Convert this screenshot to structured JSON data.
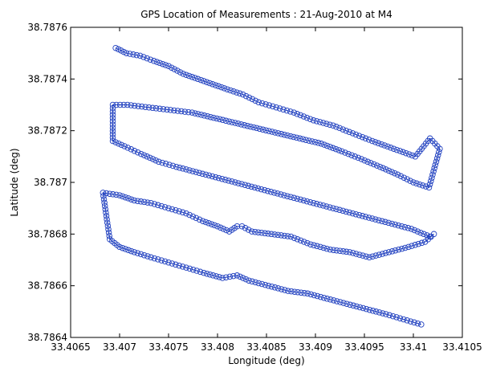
{
  "chart_data": {
    "type": "line",
    "title": "GPS Location of Measurements : 21-Aug-2010 at M4",
    "xlabel": "Longitude (deg)",
    "ylabel": "Latitude (deg)",
    "xlim": [
      33.4065,
      33.4105
    ],
    "ylim": [
      38.7864,
      38.7876
    ],
    "xticks": [
      33.4065,
      33.407,
      33.4075,
      33.408,
      33.4085,
      33.409,
      33.4095,
      33.41,
      33.4105
    ],
    "xtick_labels": [
      "33.4065",
      "33.407",
      "33.4075",
      "33.408",
      "33.4085",
      "33.409",
      "33.4095",
      "33.41",
      "33.4105"
    ],
    "yticks": [
      38.7864,
      38.7866,
      38.7868,
      38.787,
      38.7872,
      38.7874,
      38.7876
    ],
    "ytick_labels": [
      "38.7864",
      "38.7866",
      "38.7868",
      "38.787",
      "38.7872",
      "38.7874",
      "38.7876"
    ],
    "grid": false,
    "marker": "circle",
    "series_color": "#1f3fbf",
    "series": [
      {
        "x": [
          33.40696,
          33.40707,
          33.40721,
          33.40735,
          33.4075,
          33.40765,
          33.4078,
          33.40795,
          33.4081,
          33.40826,
          33.40842,
          33.4086,
          33.40878,
          33.40898,
          33.40918,
          33.40938,
          33.40958,
          33.4098,
          33.41002,
          33.41017,
          33.41027,
          33.41016,
          33.41,
          33.40984,
          33.40966,
          33.40947,
          33.40927,
          33.40906,
          33.40884,
          33.40862,
          33.4084,
          33.40818,
          33.40796,
          33.40774,
          33.40752,
          33.4073,
          33.40708,
          33.40693,
          33.40693,
          33.40705,
          33.40722,
          33.4074,
          33.40758,
          33.40778,
          33.40798,
          33.40818,
          33.40838,
          33.40858,
          33.40878,
          33.40898,
          33.40918,
          33.40938,
          33.40958,
          33.40978,
          33.40998,
          33.41017,
          33.41021,
          33.41012,
          33.40995,
          33.40975,
          33.40955,
          33.40935,
          33.40915,
          33.40895,
          33.40875,
          33.40855,
          33.40835,
          33.40825,
          33.4082,
          33.40812,
          33.408,
          33.40785,
          33.40768,
          33.4075,
          33.40732,
          33.40715,
          33.407,
          33.40683,
          33.4069,
          33.407,
          33.40715,
          33.40732,
          33.4075,
          33.40768,
          33.40786,
          33.40805,
          33.4082,
          33.40832,
          33.40852,
          33.40872,
          33.40892,
          33.40912,
          33.40932,
          33.40952,
          33.40972,
          33.4099,
          33.41008
        ],
        "y": [
          38.78752,
          38.7875,
          38.78749,
          38.78747,
          38.78745,
          38.78742,
          38.7874,
          38.78738,
          38.78736,
          38.78734,
          38.78731,
          38.78729,
          38.78727,
          38.78724,
          38.78722,
          38.78719,
          38.78716,
          38.78713,
          38.7871,
          38.78717,
          38.78713,
          38.78698,
          38.787,
          38.78703,
          38.78706,
          38.78709,
          38.78712,
          38.78715,
          38.78717,
          38.78719,
          38.78721,
          38.78723,
          38.78725,
          38.78727,
          38.78728,
          38.78729,
          38.7873,
          38.7873,
          38.78716,
          38.78714,
          38.78711,
          38.78708,
          38.78706,
          38.78704,
          38.78702,
          38.787,
          38.78698,
          38.78696,
          38.78694,
          38.78692,
          38.7869,
          38.78688,
          38.78686,
          38.78684,
          38.78682,
          38.78679,
          38.7868,
          38.78677,
          38.78675,
          38.78673,
          38.78671,
          38.78673,
          38.78674,
          38.78676,
          38.78679,
          38.7868,
          38.78681,
          38.78683,
          38.78683,
          38.78681,
          38.78683,
          38.78685,
          38.78688,
          38.7869,
          38.78692,
          38.78693,
          38.78695,
          38.78696,
          38.78678,
          38.78675,
          38.78673,
          38.78671,
          38.78669,
          38.78667,
          38.78665,
          38.78663,
          38.78664,
          38.78662,
          38.7866,
          38.78658,
          38.78657,
          38.78655,
          38.78653,
          38.78651,
          38.78649,
          38.78647,
          38.78645
        ]
      }
    ]
  }
}
